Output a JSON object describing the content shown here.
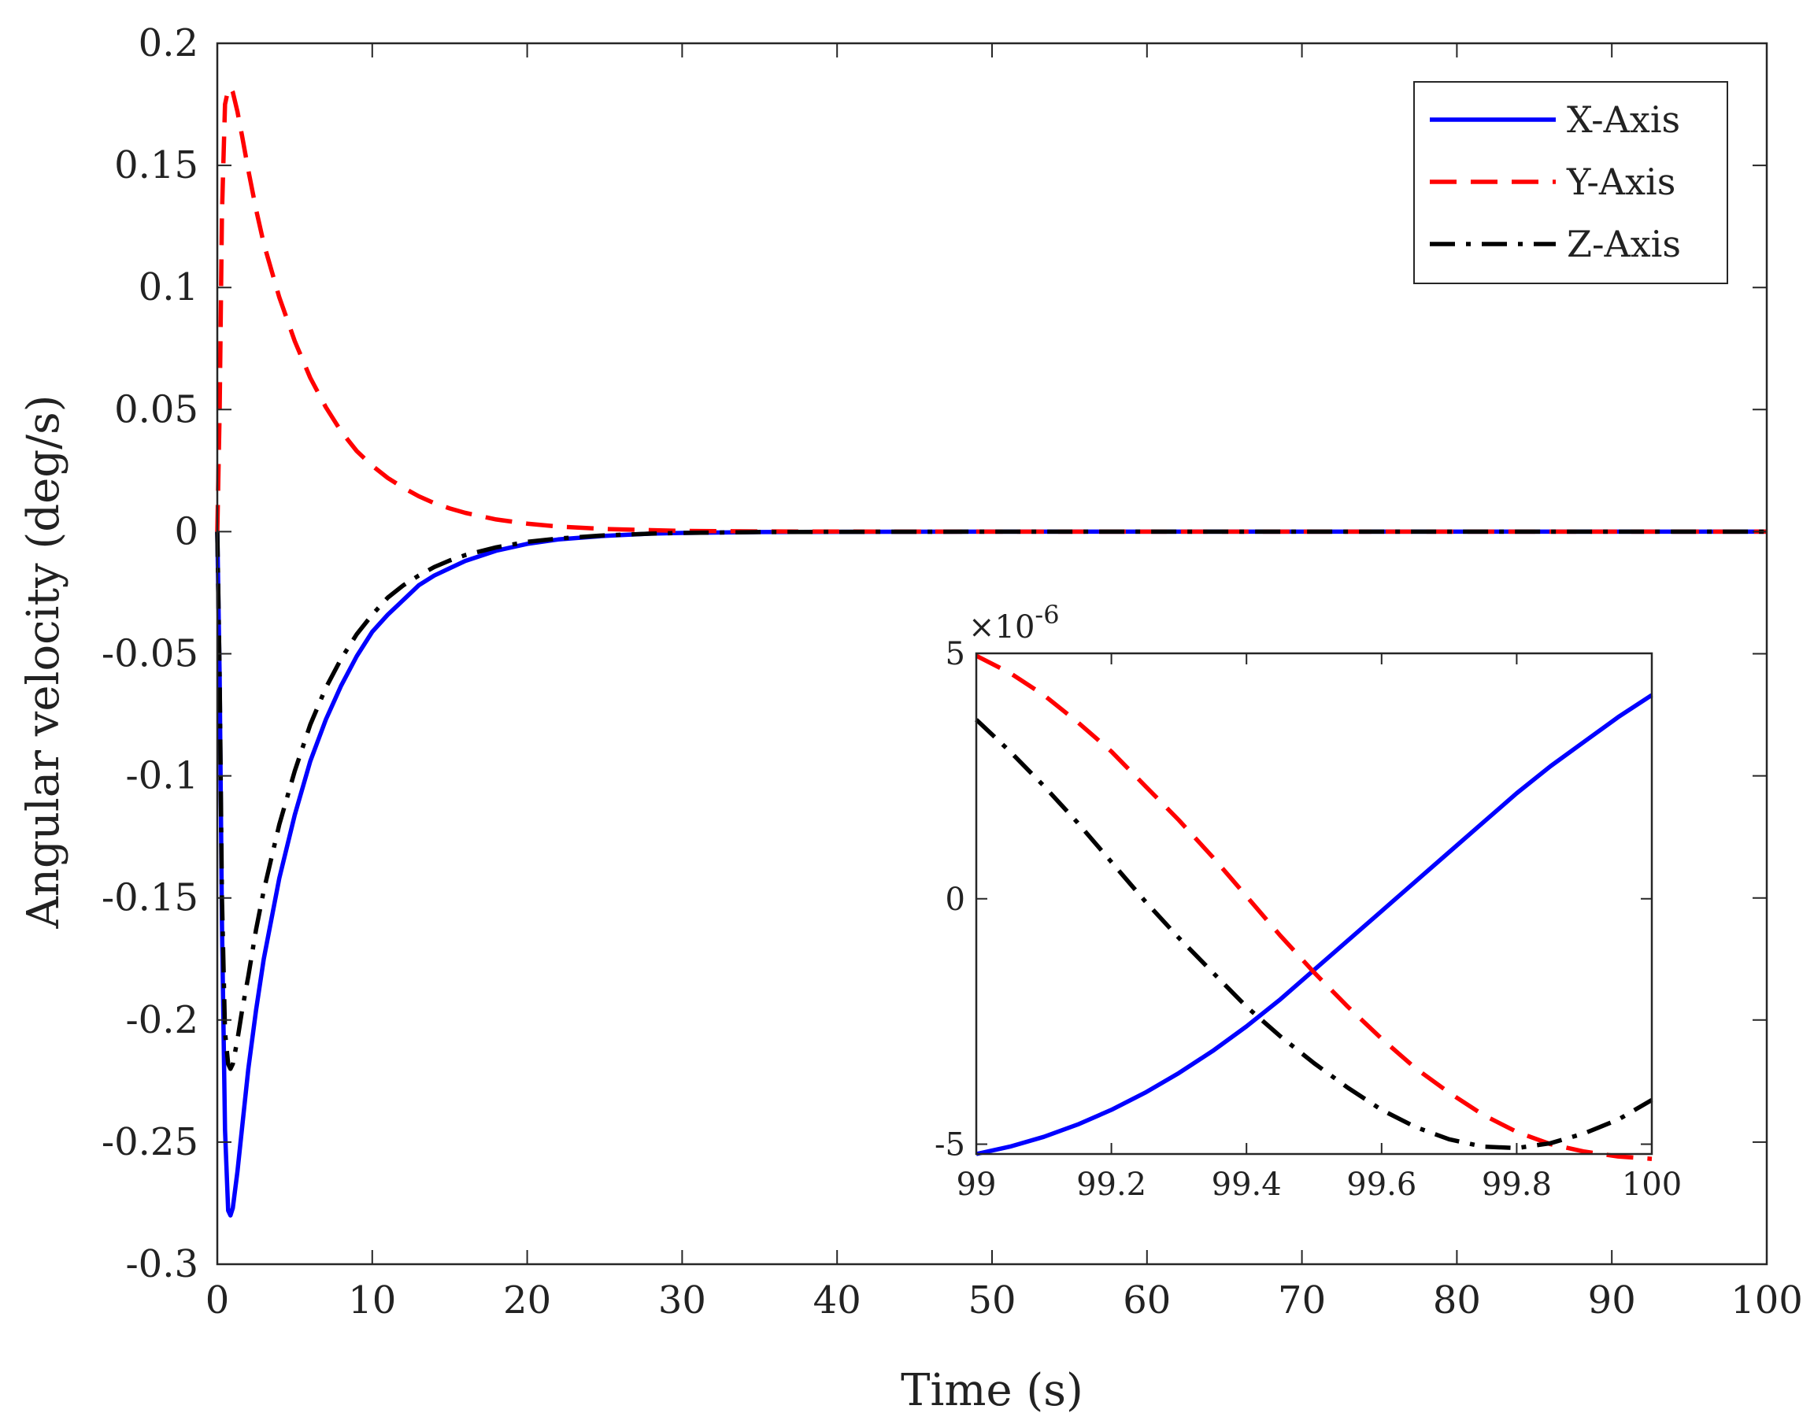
{
  "chart_data": [
    {
      "type": "line",
      "title": "",
      "xlabel": "Time (s)",
      "ylabel": "Angular velocity (deg/s)",
      "xlim": [
        0,
        100
      ],
      "ylim": [
        -0.3,
        0.2
      ],
      "xticks": [
        "0",
        "10",
        "20",
        "30",
        "40",
        "50",
        "60",
        "70",
        "80",
        "90",
        "100"
      ],
      "yticks": [
        "0.2",
        "0.15",
        "0.1",
        "0.05",
        "0",
        "-0.05",
        "-0.1",
        "-0.15",
        "-0.2",
        "-0.25",
        "-0.3"
      ],
      "grid": false,
      "legend_position": "top-right",
      "series": [
        {
          "name": "X-Axis",
          "style": "solid",
          "color": "#0000ff",
          "x": [
            0,
            0.15,
            0.3,
            0.5,
            0.7,
            0.85,
            1,
            1.3,
            1.6,
            2,
            2.5,
            3,
            4,
            5,
            6,
            7,
            8,
            9,
            10,
            11,
            12,
            13,
            14,
            15,
            16,
            18,
            20,
            22,
            25,
            28,
            30,
            35,
            40,
            50,
            60,
            70,
            80,
            90,
            100
          ],
          "y": [
            0,
            -0.06,
            -0.16,
            -0.245,
            -0.278,
            -0.28,
            -0.277,
            -0.262,
            -0.244,
            -0.22,
            -0.196,
            -0.175,
            -0.142,
            -0.116,
            -0.094,
            -0.077,
            -0.063,
            -0.051,
            -0.041,
            -0.034,
            -0.028,
            -0.022,
            -0.018,
            -0.015,
            -0.012,
            -0.0078,
            -0.005,
            -0.0032,
            -0.0017,
            -0.0008,
            -0.0005,
            -0.00015,
            -5e-05,
            0,
            0,
            0,
            0,
            0,
            0
          ]
        },
        {
          "name": "Y-Axis",
          "style": "dashed",
          "color": "#ff0000",
          "x": [
            0,
            0.15,
            0.3,
            0.5,
            0.7,
            0.85,
            1,
            1.3,
            1.6,
            2,
            2.5,
            3,
            4,
            5,
            6,
            7,
            8,
            9,
            10,
            11,
            12,
            13,
            14,
            15,
            16,
            18,
            20,
            22,
            25,
            28,
            30,
            35,
            40,
            50,
            60,
            70,
            80,
            90,
            100
          ],
          "y": [
            0,
            0.05,
            0.13,
            0.175,
            0.181,
            0.182,
            0.18,
            0.172,
            0.162,
            0.148,
            0.132,
            0.118,
            0.096,
            0.078,
            0.063,
            0.051,
            0.041,
            0.033,
            0.027,
            0.022,
            0.018,
            0.0145,
            0.0117,
            0.0095,
            0.0077,
            0.005,
            0.0033,
            0.0021,
            0.0011,
            0.0006,
            0.0003,
            0.0001,
            3e-05,
            0,
            0,
            0,
            0,
            0,
            0
          ]
        },
        {
          "name": "Z-Axis",
          "style": "dashdot",
          "color": "#000000",
          "x": [
            0,
            0.15,
            0.3,
            0.5,
            0.7,
            0.85,
            1,
            1.3,
            1.6,
            2,
            2.5,
            3,
            4,
            5,
            6,
            7,
            8,
            9,
            10,
            11,
            12,
            13,
            14,
            15,
            16,
            18,
            20,
            22,
            25,
            28,
            30,
            35,
            40,
            50,
            60,
            70,
            80,
            90,
            100
          ],
          "y": [
            0,
            -0.06,
            -0.15,
            -0.205,
            -0.218,
            -0.22,
            -0.218,
            -0.208,
            -0.196,
            -0.182,
            -0.163,
            -0.147,
            -0.12,
            -0.098,
            -0.079,
            -0.064,
            -0.052,
            -0.042,
            -0.034,
            -0.027,
            -0.022,
            -0.018,
            -0.0145,
            -0.0118,
            -0.0096,
            -0.0064,
            -0.0042,
            -0.0028,
            -0.0015,
            -0.0008,
            -0.0005,
            -0.00015,
            -5e-05,
            0,
            0,
            0,
            0,
            0,
            0
          ]
        }
      ]
    },
    {
      "type": "line",
      "title": "",
      "xlabel": "",
      "ylabel": "",
      "xlim": [
        99,
        100
      ],
      "ylim": [
        -5.2,
        5
      ],
      "exponent_label": "×10",
      "exponent_power": "-6",
      "xticks": [
        "99",
        "99.2",
        "99.4",
        "99.6",
        "99.8",
        "100"
      ],
      "yticks": [
        "5",
        "0",
        "-5"
      ],
      "grid": false,
      "series": [
        {
          "name": "X-Axis",
          "style": "solid",
          "color": "#0000ff",
          "x": [
            99,
            99.05,
            99.1,
            99.15,
            99.2,
            99.25,
            99.3,
            99.35,
            99.4,
            99.45,
            99.5,
            99.55,
            99.6,
            99.65,
            99.7,
            99.75,
            99.8,
            99.85,
            99.9,
            99.95,
            100
          ],
          "y": [
            -5.2,
            -5.05,
            -4.85,
            -4.6,
            -4.3,
            -3.95,
            -3.55,
            -3.1,
            -2.6,
            -2.05,
            -1.45,
            -0.85,
            -0.25,
            0.35,
            0.95,
            1.55,
            2.15,
            2.7,
            3.2,
            3.7,
            4.15
          ]
        },
        {
          "name": "Y-Axis",
          "style": "dashed",
          "color": "#ff0000",
          "x": [
            99,
            99.05,
            99.1,
            99.15,
            99.2,
            99.25,
            99.3,
            99.35,
            99.4,
            99.45,
            99.5,
            99.55,
            99.6,
            99.65,
            99.7,
            99.75,
            99.8,
            99.85,
            99.9,
            99.95,
            100
          ],
          "y": [
            4.95,
            4.6,
            4.15,
            3.6,
            3.0,
            2.3,
            1.6,
            0.85,
            0.05,
            -0.75,
            -1.5,
            -2.2,
            -2.85,
            -3.45,
            -3.95,
            -4.4,
            -4.75,
            -5.0,
            -5.15,
            -5.25,
            -5.3
          ]
        },
        {
          "name": "Z-Axis",
          "style": "dashdot",
          "color": "#000000",
          "x": [
            99,
            99.05,
            99.1,
            99.15,
            99.2,
            99.25,
            99.3,
            99.35,
            99.4,
            99.45,
            99.5,
            99.55,
            99.6,
            99.65,
            99.7,
            99.75,
            99.8,
            99.85,
            99.9,
            99.95,
            100
          ],
          "y": [
            3.65,
            3.0,
            2.3,
            1.55,
            0.75,
            -0.05,
            -0.8,
            -1.5,
            -2.2,
            -2.8,
            -3.35,
            -3.85,
            -4.3,
            -4.65,
            -4.9,
            -5.05,
            -5.08,
            -4.98,
            -4.78,
            -4.5,
            -4.1
          ]
        }
      ]
    }
  ]
}
